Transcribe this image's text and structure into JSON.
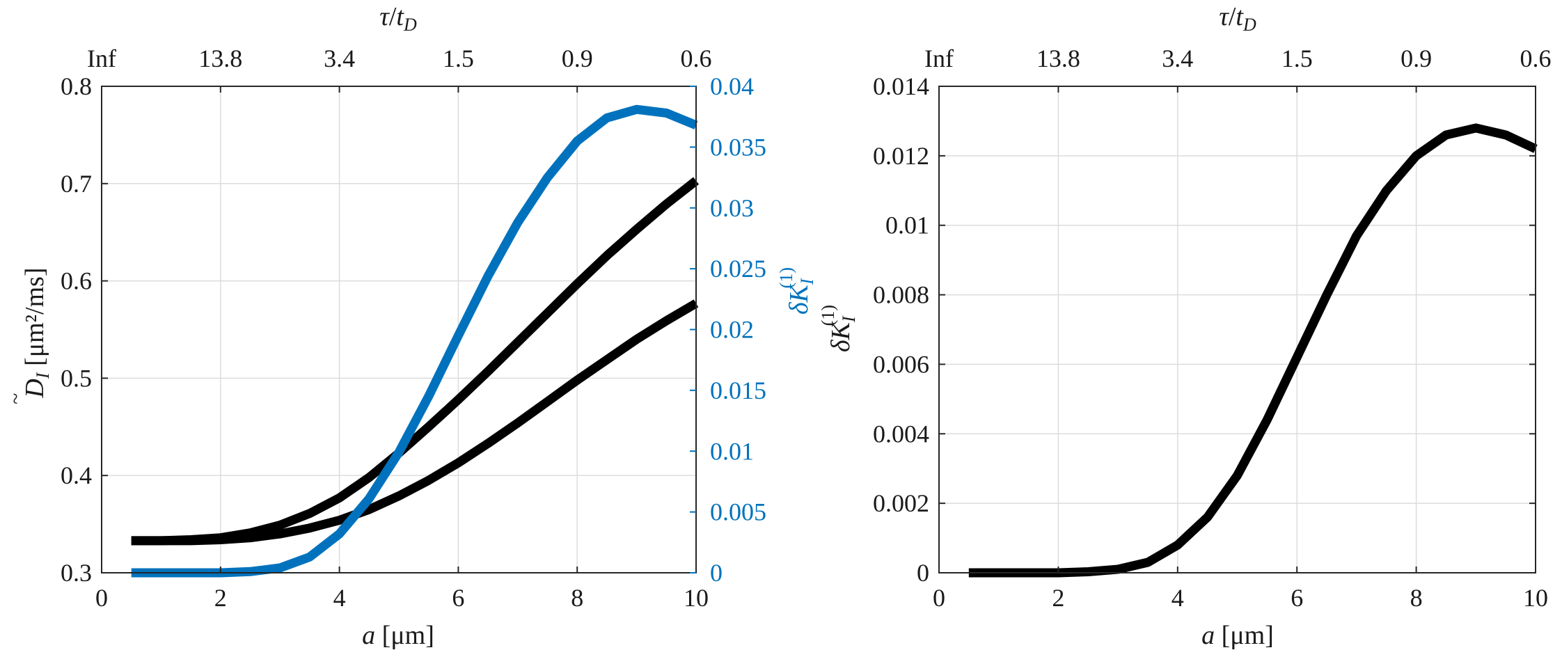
{
  "chart_data": [
    {
      "id": "left",
      "type": "line",
      "xlim": [
        0,
        10
      ],
      "ylim": [
        0.3,
        0.8
      ],
      "y2lim": [
        0,
        0.04
      ],
      "x_ticks": [
        0,
        2,
        4,
        6,
        8,
        10
      ],
      "y_ticks": [
        0.3,
        0.4,
        0.5,
        0.6,
        0.7,
        0.8
      ],
      "y2_ticks": [
        0,
        0.005,
        0.01,
        0.015,
        0.02,
        0.025,
        0.03,
        0.035,
        0.04
      ],
      "top_ticks": [
        "Inf",
        "13.8",
        "3.4",
        "1.5",
        "0.9",
        "0.6"
      ],
      "xlabel_var": "a",
      "xlabel_unit": "[μm]",
      "ylabel_var": "D",
      "ylabel_sub": "I",
      "ylabel_unit": "[μm²/ms]",
      "y2label_var": "δK",
      "y2label_sub": "I",
      "y2label_sup": "(1)",
      "toplabel_num": "τ",
      "toplabel_den": "t",
      "toplabel_sub": "D",
      "grid": true,
      "series": [
        {
          "axis": "left",
          "color": "#000000",
          "x": [
            0.5,
            1,
            1.5,
            2,
            2.5,
            3,
            3.5,
            4,
            4.5,
            5,
            5.5,
            6,
            6.5,
            7,
            7.5,
            8,
            8.5,
            9,
            9.5,
            10
          ],
          "values": [
            0.333,
            0.333,
            0.334,
            0.336,
            0.341,
            0.349,
            0.361,
            0.377,
            0.398,
            0.423,
            0.45,
            0.478,
            0.507,
            0.537,
            0.567,
            0.597,
            0.626,
            0.653,
            0.679,
            0.703
          ]
        },
        {
          "axis": "left",
          "color": "#000000",
          "x": [
            0.5,
            1,
            1.5,
            2,
            2.5,
            3,
            3.5,
            4,
            4.5,
            5,
            5.5,
            6,
            6.5,
            7,
            7.5,
            8,
            8.5,
            9,
            9.5,
            10
          ],
          "values": [
            0.333,
            0.333,
            0.333,
            0.334,
            0.336,
            0.34,
            0.346,
            0.354,
            0.365,
            0.379,
            0.395,
            0.413,
            0.433,
            0.454,
            0.476,
            0.498,
            0.519,
            0.54,
            0.559,
            0.577
          ]
        },
        {
          "axis": "right",
          "color": "#0072bd",
          "x": [
            0.5,
            1,
            1.5,
            2,
            2.5,
            3,
            3.5,
            4,
            4.5,
            5,
            5.5,
            6,
            6.5,
            7,
            7.5,
            8,
            8.5,
            9,
            9.5,
            10
          ],
          "values": [
            0,
            0,
            0,
            0,
            0.0001,
            0.0004,
            0.0013,
            0.0032,
            0.0061,
            0.0099,
            0.0145,
            0.0195,
            0.0244,
            0.0288,
            0.0325,
            0.0355,
            0.0374,
            0.0381,
            0.0378,
            0.0368
          ]
        }
      ]
    },
    {
      "id": "right",
      "type": "line",
      "xlim": [
        0,
        10
      ],
      "ylim": [
        0,
        0.014
      ],
      "x_ticks": [
        0,
        2,
        4,
        6,
        8,
        10
      ],
      "y_ticks": [
        0,
        0.002,
        0.004,
        0.006,
        0.008,
        0.01,
        0.012,
        0.014
      ],
      "top_ticks": [
        "Inf",
        "13.8",
        "3.4",
        "1.5",
        "0.9",
        "0.6"
      ],
      "xlabel_var": "a",
      "xlabel_unit": "[μm]",
      "ylabel_var": "δK",
      "ylabel_sub": "I",
      "ylabel_sup": "(1)",
      "toplabel_num": "τ",
      "toplabel_den": "t",
      "toplabel_sub": "D",
      "grid": true,
      "series": [
        {
          "axis": "left",
          "color": "#000000",
          "x": [
            0.5,
            1,
            1.5,
            2,
            2.5,
            3,
            3.5,
            4,
            4.5,
            5,
            5.5,
            6,
            6.5,
            7,
            7.5,
            8,
            8.5,
            9,
            9.5,
            10
          ],
          "values": [
            0,
            0,
            0,
            0,
            3e-05,
            0.0001,
            0.0003,
            0.0008,
            0.0016,
            0.0028,
            0.0044,
            0.0062,
            0.008,
            0.0097,
            0.011,
            0.012,
            0.0126,
            0.0128,
            0.0126,
            0.0122
          ]
        }
      ]
    }
  ]
}
